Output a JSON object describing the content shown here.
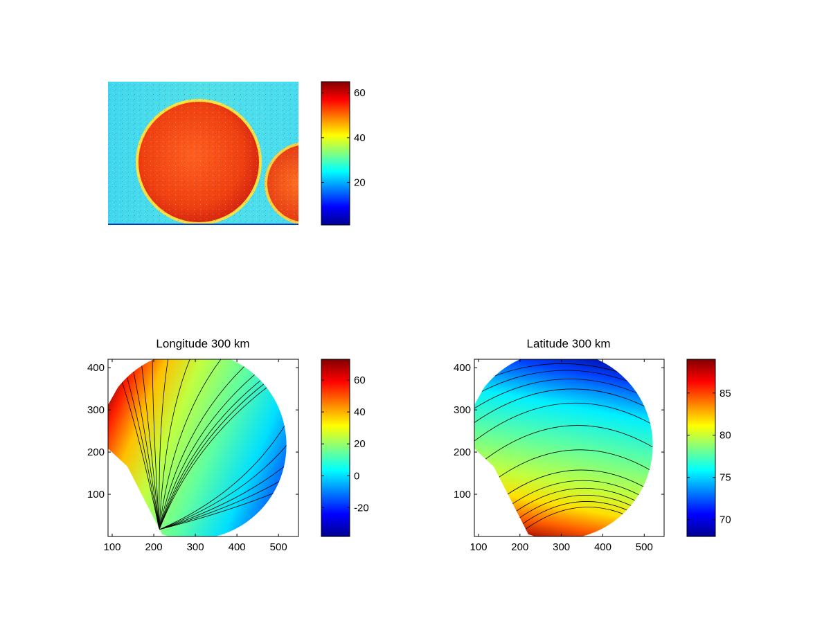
{
  "colormap": [
    "#00008f",
    "#0000ff",
    "#0080ff",
    "#00ffff",
    "#80ff80",
    "#ffff00",
    "#ff8000",
    "#ff0000",
    "#800000"
  ],
  "chart_data": [
    {
      "type": "heatmap",
      "title": "",
      "colorbar": {
        "min": 1,
        "max": 65,
        "ticks": [
          20,
          40,
          60
        ]
      },
      "description_values": {
        "background_level": 28,
        "disk_level": 55,
        "edge_level": 45
      }
    },
    {
      "type": "heatmap",
      "title": "Longitude 300 km",
      "xlim": [
        90,
        548
      ],
      "ylim": [
        0,
        420
      ],
      "xticks": [
        100,
        200,
        300,
        400,
        500
      ],
      "yticks": [
        100,
        200,
        300,
        400
      ],
      "colorbar": {
        "min": -38,
        "max": 73,
        "ticks": [
          -20,
          0,
          20,
          40,
          60
        ]
      }
    },
    {
      "type": "heatmap",
      "title": "Latitude 300 km",
      "xlim": [
        90,
        548
      ],
      "ylim": [
        0,
        420
      ],
      "xticks": [
        100,
        200,
        300,
        400,
        500
      ],
      "yticks": [
        100,
        200,
        300,
        400
      ],
      "colorbar": {
        "min": 68,
        "max": 89,
        "ticks": [
          70,
          75,
          80,
          85
        ]
      }
    }
  ]
}
